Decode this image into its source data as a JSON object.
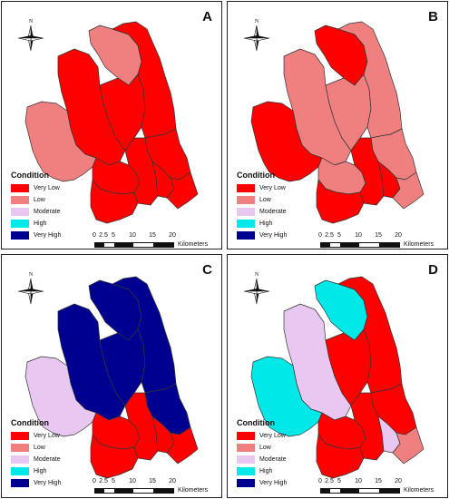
{
  "figure": {
    "panels": [
      {
        "letter": "A",
        "fills": [
          "low",
          "verylow",
          "verylow",
          "verylow",
          "verylow",
          "low",
          "verylow",
          "verylow",
          "verylow",
          "verylow",
          "verylow"
        ]
      },
      {
        "letter": "B",
        "fills": [
          "verylow",
          "low",
          "low",
          "low",
          "low",
          "verylow",
          "low",
          "verylow",
          "verylow",
          "verylow",
          "low"
        ]
      },
      {
        "letter": "C",
        "fills": [
          "veryhigh",
          "veryhigh",
          "veryhigh",
          "veryhigh",
          "veryhigh",
          "moderate",
          "verylow",
          "verylow",
          "verylow",
          "verylow",
          "verylow"
        ]
      },
      {
        "letter": "D",
        "fills": [
          "high",
          "moderate",
          "verylow",
          "verylow",
          "verylow",
          "high",
          "verylow",
          "verylow",
          "verylow",
          "moderate",
          "low"
        ]
      }
    ],
    "legend": {
      "title": "Condition",
      "items": [
        {
          "key": "verylow",
          "label": "Very Low",
          "color": "#ff0000"
        },
        {
          "key": "low",
          "label": "Low",
          "color": "#f08080"
        },
        {
          "key": "moderate",
          "label": "Moderate",
          "color": "#e8c8f0"
        },
        {
          "key": "high",
          "label": "High",
          "color": "#00e8e8"
        },
        {
          "key": "veryhigh",
          "label": "Very High",
          "color": "#000090"
        }
      ]
    },
    "north_label": "N",
    "scale": {
      "ticks": [
        "0",
        "2.5",
        "5",
        "10",
        "15",
        "20"
      ],
      "unit": "Kilometers"
    }
  }
}
